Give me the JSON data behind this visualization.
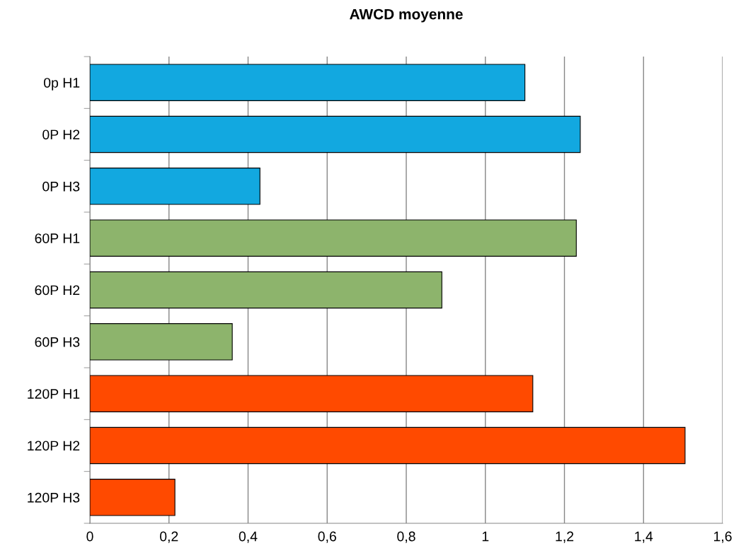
{
  "chart_data": {
    "type": "bar",
    "orientation": "horizontal",
    "title": "AWCD moyenne",
    "categories": [
      "0p H1",
      "0P H2",
      "0P H3",
      "60P H1",
      "60P H2",
      "60P H3",
      "120P H1",
      "120P H2",
      "120P H3"
    ],
    "values": [
      1.1,
      1.24,
      0.43,
      1.23,
      0.89,
      0.36,
      1.12,
      1.505,
      0.215
    ],
    "colors": [
      "#12a8e0",
      "#12a8e0",
      "#12a8e0",
      "#8db46c",
      "#8db46c",
      "#8db46c",
      "#ff4a00",
      "#ff4a00",
      "#ff4a00"
    ],
    "xlim": [
      0,
      1.6
    ],
    "xticks": [
      0,
      {
        "value": 0.2,
        "label": "0,2"
      },
      {
        "value": 0.4,
        "label": "0,4"
      },
      {
        "value": 0.6,
        "label": "0,6"
      },
      {
        "value": 0.8,
        "label": "0,8"
      },
      1,
      {
        "value": 1.2,
        "label": "1,2"
      },
      {
        "value": 1.4,
        "label": "1,4"
      },
      {
        "value": 1.6,
        "label": "1,6"
      }
    ],
    "grid": "x"
  }
}
